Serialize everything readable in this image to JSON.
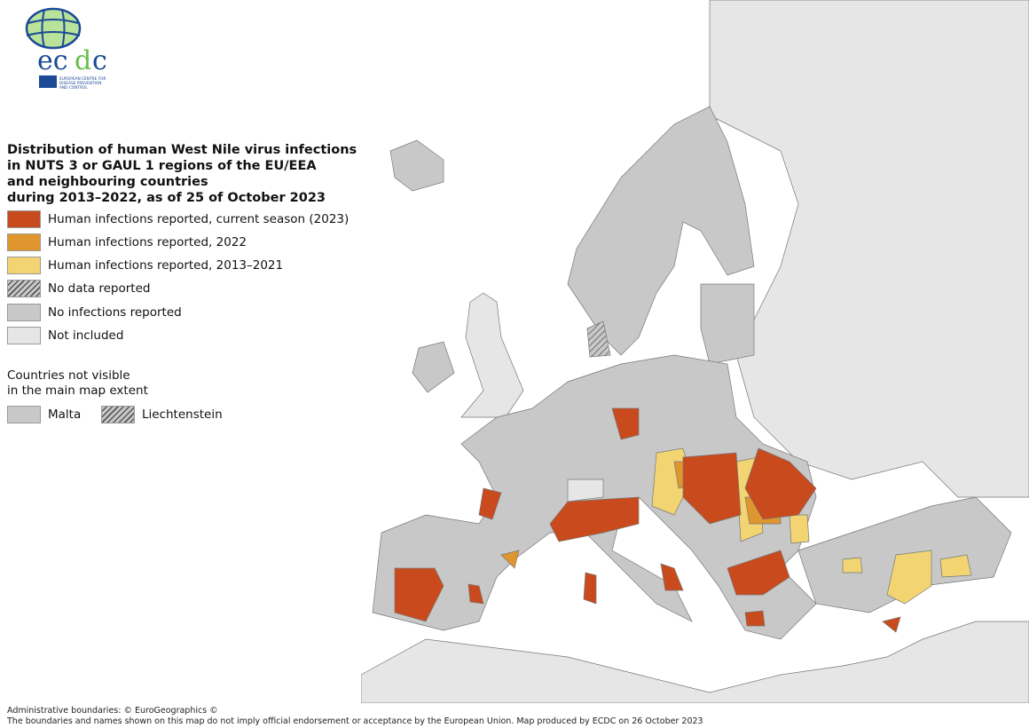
{
  "logo": {
    "text": "ecdc",
    "subtitle": "EUROPEAN CENTRE FOR DISEASE PREVENTION AND CONTROL"
  },
  "title": "Distribution of human West Nile virus infections\nin NUTS 3 or GAUL 1 regions of the EU/EEA\nand neighbouring countries\nduring 2013–2022, as of 25 of October 2023",
  "legend": [
    {
      "label": "Human infections reported, current season (2023)",
      "color": "#c94a1c"
    },
    {
      "label": "Human infections reported, 2022",
      "color": "#e0962f"
    },
    {
      "label": "Human infections reported, 2013–2021",
      "color": "#f2d472"
    },
    {
      "label": "No data reported",
      "color": "hatched"
    },
    {
      "label": "No infections reported",
      "color": "#c8c8c8"
    },
    {
      "label": "Not included",
      "color": "#e6e6e6"
    }
  ],
  "not_visible": {
    "heading": "Countries not visible\nin the main map extent",
    "items": [
      {
        "label": "Malta",
        "color": "#c8c8c8"
      },
      {
        "label": "Liechtenstein",
        "color": "hatched"
      }
    ]
  },
  "footer": {
    "line1": "Administrative boundaries: © EuroGeographics ©",
    "line2": "The boundaries and names shown on this map do not imply official endorsement or acceptance by the European Union. Map produced by ECDC on 26 October 2023"
  }
}
